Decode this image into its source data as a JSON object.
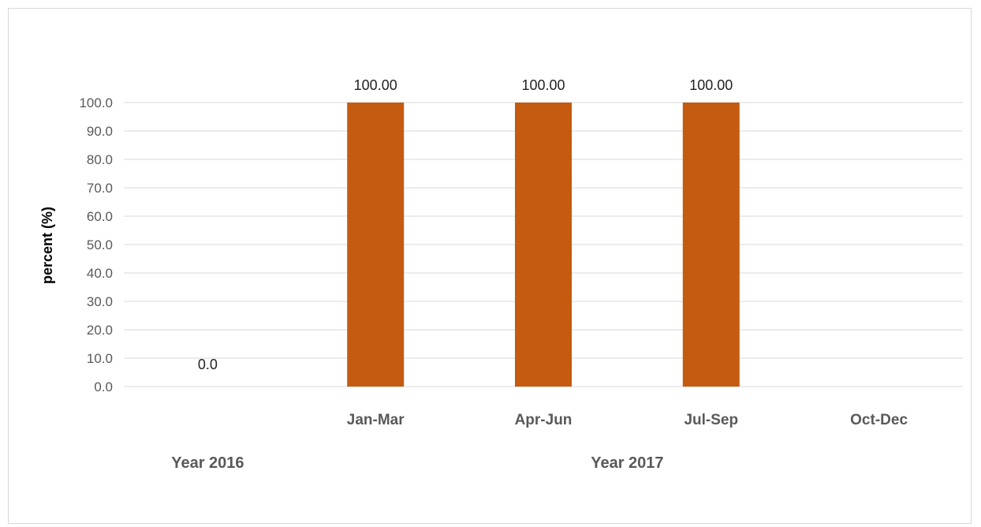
{
  "chart_data": {
    "type": "bar",
    "title": "",
    "xlabel": "",
    "ylabel": "percent (%)",
    "ylim": [
      0,
      100
    ],
    "yticks": [
      "0.0",
      "10.0",
      "20.0",
      "30.0",
      "40.0",
      "50.0",
      "60.0",
      "70.0",
      "80.0",
      "90.0",
      "100.0"
    ],
    "grid": true,
    "legend": "none",
    "categories": [
      "",
      "Jan-Mar",
      "Apr-Jun",
      "Jul-Sep",
      "Oct-Dec"
    ],
    "groups": [
      {
        "label": "Year 2016",
        "categories": [
          ""
        ]
      },
      {
        "label": "Year 2017",
        "categories": [
          "Jan-Mar",
          "Apr-Jun",
          "Jul-Sep",
          "Oct-Dec"
        ]
      }
    ],
    "values": [
      0,
      100,
      100,
      100,
      null
    ],
    "data_labels": [
      "0.0",
      "100.00",
      "100.00",
      "100.00",
      ""
    ],
    "colors": {
      "bar": "#C55A11",
      "grid": "#d9d9d9"
    }
  }
}
